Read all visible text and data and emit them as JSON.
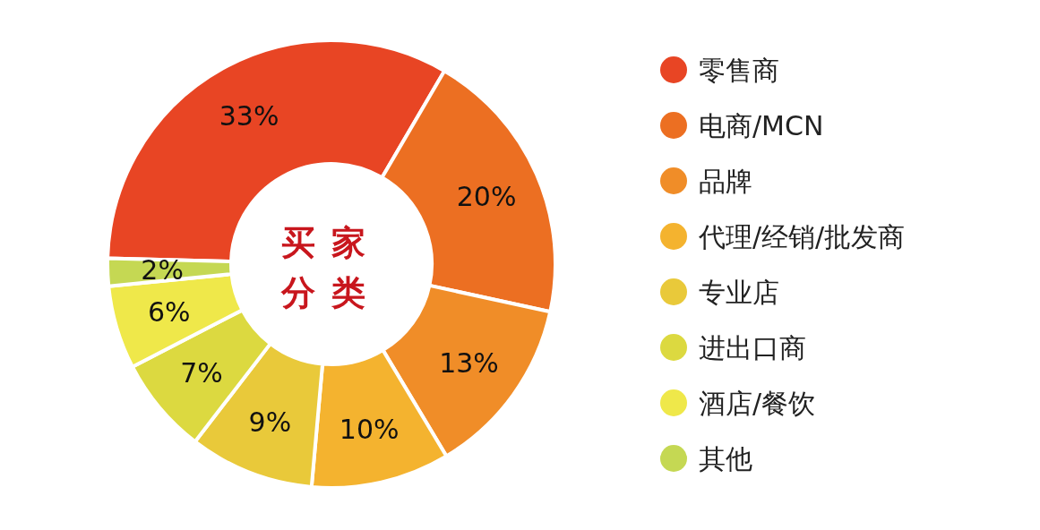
{
  "chart_data": {
    "type": "donut",
    "title": "买家分类",
    "categories": [
      "零售商",
      "电商/MCN",
      "品牌",
      "代理/经销/批发商",
      "专业店",
      "进出口商",
      "酒店/餐饮",
      "其他"
    ],
    "values": [
      33,
      20,
      13,
      10,
      9,
      7,
      6,
      2
    ],
    "value_labels": [
      "33%",
      "20%",
      "13%",
      "10%",
      "9%",
      "7%",
      "6%",
      "2%"
    ],
    "colors": [
      "#e84524",
      "#ec6f22",
      "#f08d28",
      "#f4b32f",
      "#e9c93a",
      "#dcd940",
      "#efe84a",
      "#c5d853"
    ],
    "legend": "right"
  }
}
